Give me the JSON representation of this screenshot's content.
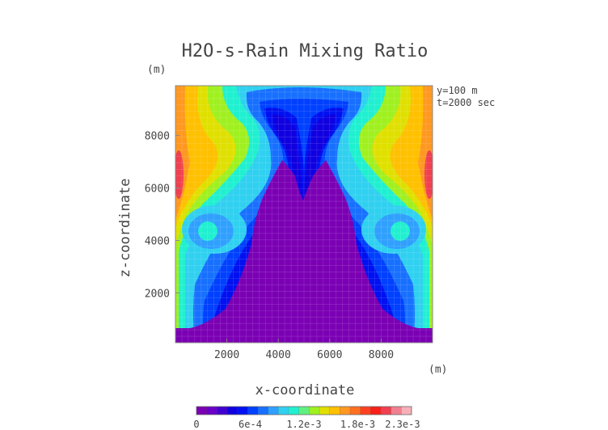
{
  "chart_data": {
    "type": "heatmap",
    "title": "H2O-s-Rain Mixing Ratio",
    "xlabel": "x-coordinate",
    "ylabel": "z-coordinate",
    "x_unit": "(m)",
    "y_unit": "(m)",
    "annotations": [
      "y=100 m",
      "t=2000 sec"
    ],
    "xlim": [
      0,
      10000
    ],
    "ylim": [
      100,
      9900
    ],
    "xticks": [
      2000,
      4000,
      6000,
      8000
    ],
    "yticks": [
      2000,
      4000,
      6000,
      8000
    ],
    "xtick_labels": [
      "2000",
      "4000",
      "6000",
      "8000"
    ],
    "ytick_labels": [
      "2000",
      "4000",
      "6000",
      "8000"
    ],
    "grid": true,
    "colorbar": {
      "min": 0,
      "max": 0.0024,
      "tick_values": [
        0,
        0.0006,
        0.0012,
        0.0018,
        0.0023
      ],
      "tick_labels": [
        "0",
        "6e-4",
        "1.2e-3",
        "1.8e-3",
        "2.3e-3"
      ],
      "placement": "bottom",
      "colors": [
        "#7b00b4",
        "#6a00c8",
        "#4000d0",
        "#1000e0",
        "#0010f0",
        "#0040ff",
        "#1870ff",
        "#30a0ff",
        "#30d0f0",
        "#20f0d0",
        "#60f080",
        "#a0f020",
        "#e0e000",
        "#ffc000",
        "#ff9820",
        "#ff7020",
        "#ff4020",
        "#f82018",
        "#f04050",
        "#f08090",
        "#f8b0b8"
      ]
    },
    "field": {
      "description_values": "mixing ratio (kg/kg) sampled at select locations",
      "samples": [
        {
          "x": 5000,
          "z": 2000,
          "value": 0.0
        },
        {
          "x": 2500,
          "z": 8500,
          "value": 0.0012
        },
        {
          "x": 500,
          "z": 8500,
          "value": 0.0018
        },
        {
          "x": 1300,
          "z": 4000,
          "value": 0.0012
        },
        {
          "x": 8700,
          "z": 4000,
          "value": 0.0012
        },
        {
          "x": 200,
          "z": 6500,
          "value": 0.0021
        }
      ]
    }
  }
}
